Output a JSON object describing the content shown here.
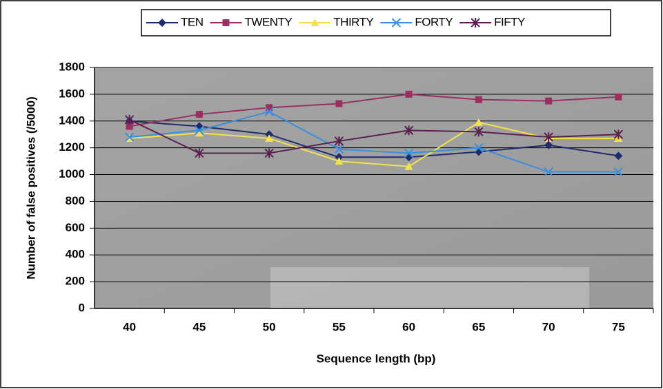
{
  "chart_data": {
    "type": "line",
    "x_label": "Sequence length (bp)",
    "y_label": "Number of false positives (/5000)",
    "categories": [
      "40",
      "45",
      "50",
      "55",
      "60",
      "65",
      "70",
      "75"
    ],
    "series": [
      {
        "name": "TEN",
        "color": "#1f2a6b",
        "marker": "diamond",
        "values": [
          1400,
          1360,
          1300,
          1130,
          1130,
          1170,
          1220,
          1140
        ]
      },
      {
        "name": "TWENTY",
        "color": "#9b3060",
        "marker": "square",
        "values": [
          1360,
          1450,
          1500,
          1530,
          1600,
          1560,
          1550,
          1580
        ]
      },
      {
        "name": "THIRTY",
        "color": "#f2e34a",
        "marker": "triangle",
        "values": [
          1270,
          1310,
          1270,
          1100,
          1060,
          1390,
          1270,
          1270
        ]
      },
      {
        "name": "FORTY",
        "color": "#3a8ee0",
        "marker": "x",
        "values": [
          1280,
          1330,
          1470,
          1190,
          1160,
          1200,
          1020,
          1020
        ]
      },
      {
        "name": "FIFTY",
        "color": "#5a1f4f",
        "marker": "star",
        "values": [
          1410,
          1160,
          1160,
          1250,
          1330,
          1320,
          1280,
          1300
        ]
      }
    ],
    "ylim": [
      0,
      1800
    ],
    "yticks": [
      0,
      200,
      400,
      600,
      800,
      1000,
      1200,
      1400,
      1600,
      1800
    ],
    "grid": true,
    "legend": "top"
  }
}
